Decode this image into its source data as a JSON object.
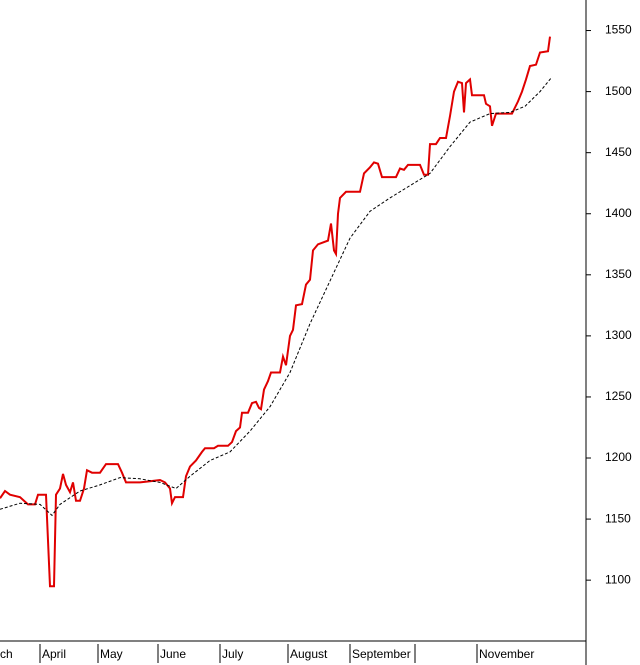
{
  "chart_data": {
    "type": "line",
    "series": [
      {
        "color": "#e00000",
        "dash": false,
        "x": [
          0,
          5,
          10,
          20,
          28,
          35,
          38,
          46,
          50,
          54,
          56,
          60,
          63,
          66,
          70,
          73,
          76,
          80,
          84,
          87,
          92,
          100,
          106,
          118,
          122,
          126,
          140,
          150,
          160,
          165,
          170,
          172,
          175,
          183,
          186,
          190,
          196,
          202,
          205,
          214,
          218,
          228,
          232,
          236,
          240,
          242,
          248,
          252,
          256,
          259,
          261,
          264,
          268,
          271,
          280,
          283,
          286,
          290,
          293,
          296,
          302,
          306,
          310,
          313,
          318,
          328,
          331,
          334,
          336,
          338,
          340,
          346,
          360,
          364,
          370,
          374,
          378,
          382,
          396,
          400,
          404,
          408,
          420,
          424,
          428,
          430,
          436,
          440,
          446,
          450,
          454,
          458,
          462,
          464,
          466,
          470,
          472,
          476,
          484,
          486,
          490,
          492,
          496,
          500,
          512,
          518,
          522,
          526,
          530,
          536,
          540,
          548,
          550
        ],
        "values": [
          1167,
          1173,
          1170,
          1168,
          1162,
          1162,
          1170,
          1170,
          1095,
          1095,
          1170,
          1175,
          1187,
          1178,
          1172,
          1180,
          1165,
          1165,
          1175,
          1190,
          1188,
          1188,
          1195,
          1195,
          1188,
          1180,
          1180,
          1181,
          1182,
          1180,
          1175,
          1163,
          1168,
          1168,
          1185,
          1193,
          1198,
          1205,
          1208,
          1208,
          1210,
          1210,
          1213,
          1222,
          1225,
          1237,
          1237,
          1245,
          1246,
          1241,
          1240,
          1256,
          1263,
          1270,
          1270,
          1283,
          1276,
          1300,
          1305,
          1325,
          1326,
          1342,
          1346,
          1370,
          1375,
          1378,
          1392,
          1370,
          1367,
          1400,
          1413,
          1418,
          1418,
          1433,
          1438,
          1442,
          1441,
          1430,
          1430,
          1437,
          1436,
          1440,
          1440,
          1432,
          1432,
          1457,
          1457,
          1462,
          1462,
          1480,
          1500,
          1508,
          1507,
          1483,
          1507,
          1510,
          1497,
          1497,
          1497,
          1490,
          1488,
          1472,
          1482,
          1482,
          1482,
          1492,
          1500,
          1510,
          1521,
          1522,
          1532,
          1533,
          1545
        ]
      },
      {
        "color": "#000000",
        "dash": true,
        "x": [
          0,
          20,
          40,
          52,
          60,
          80,
          100,
          120,
          140,
          160,
          176,
          190,
          210,
          230,
          250,
          270,
          290,
          310,
          330,
          350,
          370,
          390,
          410,
          430,
          450,
          470,
          490,
          510,
          525,
          540,
          552
        ],
        "values": [
          1158,
          1163,
          1162,
          1153,
          1162,
          1173,
          1178,
          1184,
          1183,
          1180,
          1175,
          1185,
          1198,
          1205,
          1222,
          1242,
          1270,
          1310,
          1345,
          1380,
          1402,
          1413,
          1423,
          1433,
          1455,
          1475,
          1482,
          1483,
          1488,
          1500,
          1512
        ]
      }
    ],
    "xlim": [
      0,
      585
    ],
    "xticks": [
      {
        "value": -2,
        "label": "ch"
      },
      {
        "value": 40,
        "label": "April"
      },
      {
        "value": 98,
        "label": "May"
      },
      {
        "value": 158,
        "label": "June"
      },
      {
        "value": 220,
        "label": "July"
      },
      {
        "value": 288,
        "label": "August"
      },
      {
        "value": 350,
        "label": "September"
      },
      {
        "value": 415,
        "label": null
      },
      {
        "value": 477,
        "label": "November"
      }
    ],
    "ylim": [
      1051,
      1575
    ],
    "yticks": [
      1100,
      1150,
      1200,
      1250,
      1300,
      1350,
      1400,
      1450,
      1500,
      1550
    ],
    "y_axis_side": "right"
  }
}
